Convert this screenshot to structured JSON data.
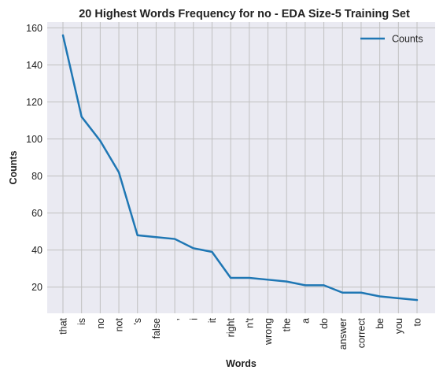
{
  "chart_data": {
    "type": "line",
    "title": "20 Highest Words Frequency for no - EDA Size-5 Training Set",
    "xlabel": "Words",
    "ylabel": "Counts",
    "categories": [
      "that",
      "is",
      "no",
      "not",
      "'s",
      "false",
      ",",
      "i",
      "it",
      "right",
      "n't",
      "wrong",
      "the",
      "a",
      "do",
      "answer",
      "correct",
      "be",
      "you",
      "to"
    ],
    "series": [
      {
        "name": "Counts",
        "color": "#1f77b4",
        "values": [
          156,
          112,
          99,
          82,
          48,
          47,
          46,
          41,
          39,
          25,
          25,
          24,
          23,
          21,
          21,
          17,
          17,
          15,
          14,
          13
        ]
      }
    ],
    "ylim": [
      5.85,
      163.15
    ],
    "yticks": [
      20,
      40,
      60,
      80,
      100,
      120,
      140,
      160
    ],
    "grid": true,
    "legend_position": "top-right",
    "colors": {
      "plot_background": "#eaeaf2",
      "grid": "#c0c0c0",
      "line": "#1f77b4"
    }
  }
}
